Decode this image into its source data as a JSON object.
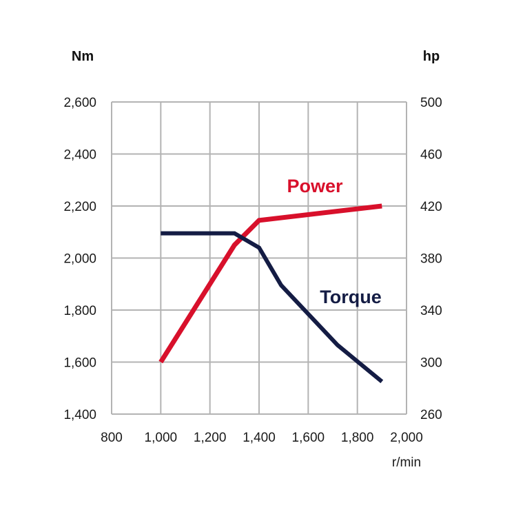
{
  "chart_data": {
    "type": "line",
    "x": {
      "label": "r/min",
      "range": [
        800,
        2000
      ],
      "ticks": [
        800,
        1000,
        1200,
        1400,
        1600,
        1800,
        2000
      ],
      "tick_labels": [
        "800",
        "1,000",
        "1,200",
        "1,400",
        "1,600",
        "1,800",
        "2,000"
      ]
    },
    "y_left": {
      "label": "Nm",
      "range": [
        1400,
        2600
      ],
      "ticks": [
        1400,
        1600,
        1800,
        2000,
        2200,
        2400,
        2600
      ],
      "tick_labels": [
        "1,400",
        "1,600",
        "1,800",
        "2,000",
        "2,200",
        "2,400",
        "2,600"
      ]
    },
    "y_right": {
      "label": "hp",
      "range": [
        260,
        500
      ],
      "ticks": [
        260,
        300,
        340,
        380,
        420,
        460,
        500
      ],
      "tick_labels": [
        "260",
        "300",
        "340",
        "380",
        "420",
        "460",
        "500"
      ]
    },
    "grid": true,
    "series": [
      {
        "name": "Power",
        "axis": "right",
        "color": "#d8102b",
        "x": [
          1000,
          1300,
          1400,
          1900
        ],
        "y": [
          300,
          390,
          409,
          420
        ]
      },
      {
        "name": "Torque",
        "axis": "left",
        "color": "#141c44",
        "x": [
          1000,
          1300,
          1400,
          1490,
          1720,
          1900
        ],
        "y": [
          2095,
          2095,
          2040,
          1895,
          1665,
          1525
        ]
      }
    ]
  }
}
